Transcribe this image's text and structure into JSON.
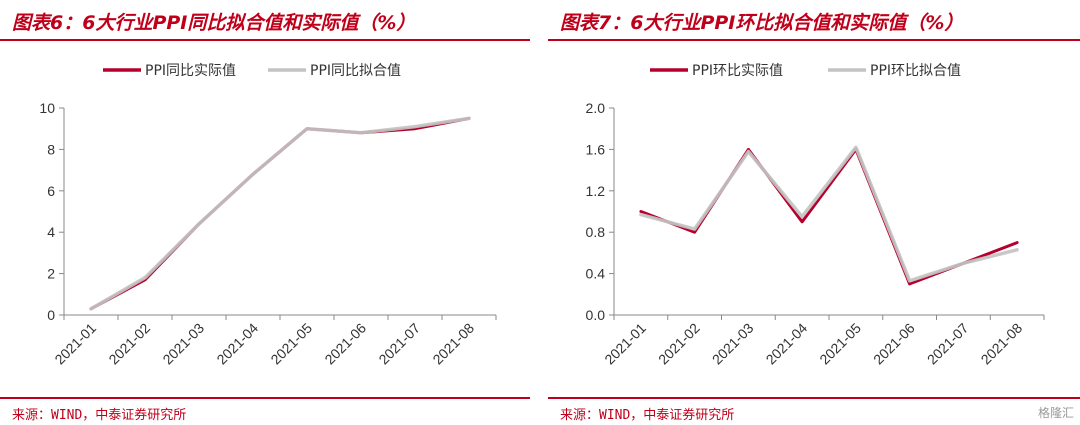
{
  "left": {
    "title": "图表6：6大行业PPI同比拟合值和实际值（%）",
    "source": "来源：WIND，中泰证券研究所"
  },
  "right": {
    "title": "图表7：6大行业PPI环比拟合值和实际值（%）",
    "source": "来源：WIND，中泰证券研究所"
  },
  "watermark": "格隆汇",
  "colors": {
    "actual": "#b5002e",
    "fitted": "#c3c3c3",
    "accent": "#c0001a"
  },
  "chart_data": [
    {
      "type": "line",
      "categories": [
        "2021-01",
        "2021-02",
        "2021-03",
        "2021-04",
        "2021-05",
        "2021-06",
        "2021-07",
        "2021-08"
      ],
      "ylim": [
        0,
        10
      ],
      "yticks": [
        "0",
        "2",
        "4",
        "6",
        "8",
        "10"
      ],
      "legend_position": "top",
      "grid": false,
      "series": [
        {
          "name": "PPI同比实际值",
          "values": [
            0.3,
            1.7,
            4.4,
            6.8,
            9.0,
            8.8,
            9.0,
            9.5
          ]
        },
        {
          "name": "PPI同比拟合值",
          "values": [
            0.3,
            1.8,
            4.4,
            6.8,
            9.0,
            8.8,
            9.1,
            9.5
          ]
        }
      ]
    },
    {
      "type": "line",
      "categories": [
        "2021-01",
        "2021-02",
        "2021-03",
        "2021-04",
        "2021-05",
        "2021-06",
        "2021-07",
        "2021-08"
      ],
      "ylim": [
        0,
        2.0
      ],
      "yticks": [
        "0.0",
        "0.4",
        "0.8",
        "1.2",
        "1.6",
        "2.0"
      ],
      "legend_position": "top",
      "grid": false,
      "series": [
        {
          "name": "PPI环比实际值",
          "values": [
            1.0,
            0.8,
            1.6,
            0.9,
            1.6,
            0.3,
            0.5,
            0.7
          ]
        },
        {
          "name": "PPI环比拟合值",
          "values": [
            0.97,
            0.83,
            1.58,
            0.95,
            1.62,
            0.33,
            0.5,
            0.63
          ]
        }
      ]
    }
  ]
}
